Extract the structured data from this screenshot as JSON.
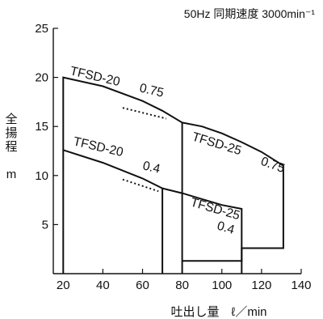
{
  "chart_data": {
    "type": "line",
    "title": "50Hz 同期速度 3000min⁻¹",
    "xlabel": "吐出し量　ℓ／min",
    "ylabel_chars": [
      "全",
      "揚",
      "程"
    ],
    "ylabel_unit": "m",
    "xlim": [
      15,
      140
    ],
    "ylim": [
      0,
      25
    ],
    "x_ticks": [
      20,
      40,
      60,
      80,
      100,
      120,
      140
    ],
    "y_ticks": [
      5,
      10,
      15,
      20,
      25
    ],
    "grid": false,
    "series": [
      {
        "name": "TFSD-20 0.75",
        "label_model": "TFSD-20",
        "label_power": "0.75",
        "curve": [
          [
            20,
            20
          ],
          [
            40,
            19.1
          ],
          [
            60,
            17.6
          ],
          [
            70,
            16.6
          ],
          [
            80,
            15.4
          ]
        ],
        "min_flow": 20,
        "max_flow": 80
      },
      {
        "name": "TFSD-25 0.75",
        "label_model": "TFSD-25",
        "label_power": "0.75",
        "curve": [
          [
            80,
            15.4
          ],
          [
            90,
            15.0
          ],
          [
            100,
            14.3
          ],
          [
            110,
            13.4
          ],
          [
            120,
            12.4
          ],
          [
            131,
            11.0
          ]
        ],
        "min_flow": 80,
        "max_flow": 131,
        "bottom_head": 2.6
      },
      {
        "name": "TFSD-20 0.4",
        "label_model": "TFSD-20",
        "label_power": "0.4",
        "curve": [
          [
            20,
            12.6
          ],
          [
            40,
            11.3
          ],
          [
            60,
            9.7
          ],
          [
            70,
            8.7
          ]
        ],
        "min_flow": 20,
        "max_flow": 70
      },
      {
        "name": "TFSD-25 0.4",
        "label_model": "TFSD-25",
        "label_power": "0.4",
        "curve": [
          [
            70,
            8.7
          ],
          [
            80,
            8.2
          ],
          [
            90,
            7.6
          ],
          [
            100,
            7.0
          ],
          [
            110,
            6.6
          ]
        ],
        "min_flow": 70,
        "max_flow": 110,
        "bottom_head": 1.3,
        "bottom_from": 80
      }
    ],
    "overlap_dotted": [
      {
        "from": [
          50,
          16.9
        ],
        "to": [
          72,
          15.8
        ]
      },
      {
        "from": [
          50,
          9.6
        ],
        "to": [
          68,
          8.4
        ]
      }
    ]
  }
}
